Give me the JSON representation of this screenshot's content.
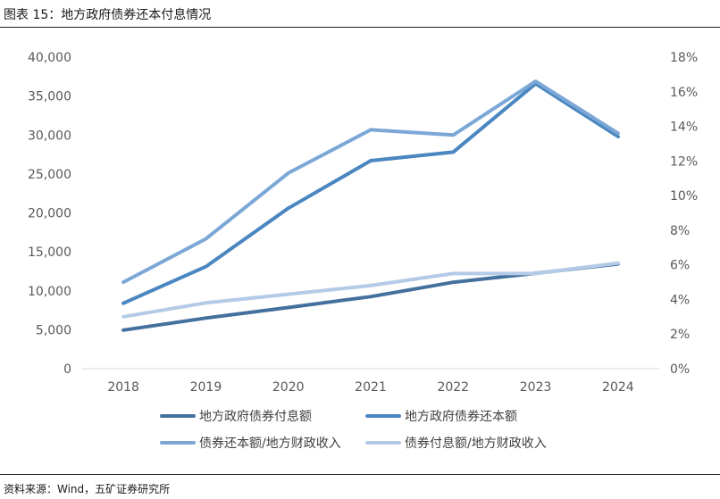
{
  "figure": {
    "title": "图表 15：地方政府债券还本付息情况",
    "source": "资料来源：Wind，五矿证券研究所"
  },
  "colors": {
    "s1": "#44709E",
    "s2": "#4A86C0",
    "s3": "#7BA7D7",
    "s4": "#B4CBE8",
    "axis": "#D9D9D9"
  },
  "chart_data": {
    "type": "line",
    "x": [
      "2018",
      "2019",
      "2020",
      "2021",
      "2022",
      "2023",
      "2024"
    ],
    "y_left": {
      "min": 0,
      "max": 40000,
      "ticks": [
        "0",
        "5,000",
        "10,000",
        "15,000",
        "20,000",
        "25,000",
        "30,000",
        "35,000",
        "40,000"
      ]
    },
    "y_right": {
      "min": 0,
      "max": 18,
      "ticks": [
        "0%",
        "2%",
        "4%",
        "6%",
        "8%",
        "10%",
        "12%",
        "14%",
        "16%",
        "18%"
      ]
    },
    "series": [
      {
        "name": "地方政府债券付息额",
        "axis": "left",
        "values": [
          4950,
          6500,
          7850,
          9250,
          11100,
          12250,
          13450
        ]
      },
      {
        "name": "地方政府债券还本额",
        "axis": "left",
        "values": [
          8400,
          13100,
          20600,
          26700,
          27800,
          36600,
          29800
        ]
      },
      {
        "name": "债券还本额/地方财政收入",
        "axis": "right",
        "values": [
          5.0,
          7.5,
          11.3,
          13.8,
          13.5,
          16.6,
          13.6
        ]
      },
      {
        "name": "债券付息额/地方财政收入",
        "axis": "right",
        "values": [
          3.0,
          3.8,
          4.3,
          4.8,
          5.5,
          5.5,
          6.1
        ]
      }
    ]
  }
}
